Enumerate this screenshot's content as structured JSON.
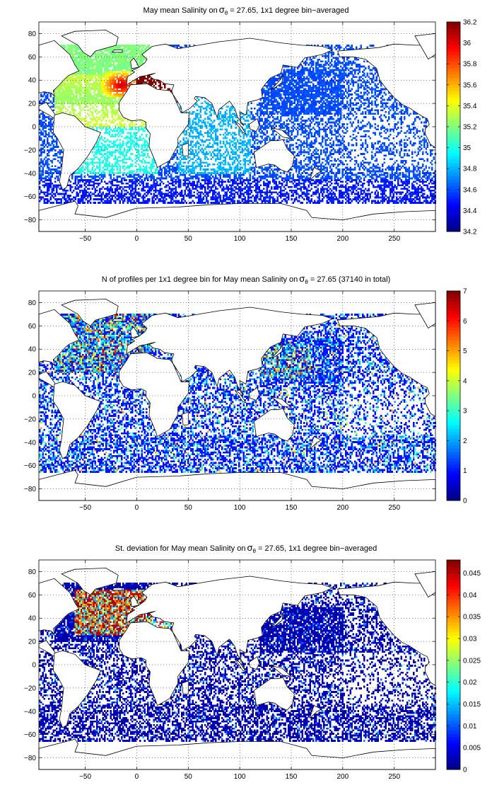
{
  "colors": {
    "land": "#ffffff",
    "coast": "#000000",
    "ocean_nodata": "#ffffff",
    "grid": "#000000"
  },
  "colormap": "jet",
  "chart_data": [
    {
      "type": "heatmap",
      "title_prefix": "May mean Salinity on",
      "title_symbol": "σ",
      "title_subscript": "θ",
      "title_suffix": " = 27.65, 1x1 degree bin−averaged",
      "xlim": [
        -95,
        290
      ],
      "ylim": [
        -90,
        90
      ],
      "x_ticks": [
        -50,
        0,
        50,
        100,
        150,
        200,
        250
      ],
      "x_tick_labels": [
        "−50",
        "0",
        "50",
        "100",
        "150",
        "200",
        "250"
      ],
      "y_ticks": [
        80,
        60,
        40,
        20,
        0,
        -20,
        -40,
        -60,
        -80
      ],
      "y_tick_labels": [
        "80",
        "60",
        "40",
        "20",
        "0",
        "−20",
        "−40",
        "−60",
        "−80"
      ],
      "grid": true,
      "colorbar": {
        "min": 34.2,
        "max": 36.2,
        "ticks": [
          36.2,
          36,
          35.8,
          35.6,
          35.4,
          35.2,
          35,
          34.8,
          34.6,
          34.4,
          34.2
        ],
        "tick_labels": [
          "36.2",
          "36",
          "35.8",
          "35.6",
          "35.4",
          "35.2",
          "35",
          "34.8",
          "34.6",
          "34.4",
          "34.2"
        ]
      },
      "field_summary": {
        "north_atlantic_subtropical_max": 36.1,
        "mediterranean_outflow": 36.2,
        "subpolar_north_atlantic": 35.2,
        "south_atlantic": 34.9,
        "pacific_indian_background": 34.6,
        "southern_ocean": 34.4
      }
    },
    {
      "type": "heatmap",
      "title_prefix": "N of profiles per 1x1 degree bin for May mean Salinity on",
      "title_symbol": "σ",
      "title_subscript": "θ",
      "title_suffix": " = 27.65 (37140 in total)",
      "total_profiles": 37140,
      "xlim": [
        -95,
        290
      ],
      "ylim": [
        -90,
        90
      ],
      "x_ticks": [
        -50,
        0,
        50,
        100,
        150,
        200,
        250
      ],
      "x_tick_labels": [
        "−50",
        "0",
        "50",
        "100",
        "150",
        "200",
        "250"
      ],
      "y_ticks": [
        80,
        60,
        40,
        20,
        0,
        -20,
        -40,
        -60,
        -80
      ],
      "y_tick_labels": [
        "80",
        "60",
        "40",
        "20",
        "0",
        "−20",
        "−40",
        "−60",
        "−80"
      ],
      "grid": true,
      "colorbar": {
        "min": 0,
        "max": 7,
        "ticks": [
          7,
          6,
          5,
          4,
          3,
          2,
          1,
          0
        ],
        "tick_labels": [
          "7",
          "6",
          "5",
          "4",
          "3",
          "2",
          "1",
          "0"
        ]
      },
      "field_summary": {
        "high_density_regions": [
          "North Atlantic",
          "Northwest Pacific (Kuroshio)"
        ],
        "max_bin_count": 7,
        "typical_bin_count": 1
      }
    },
    {
      "type": "heatmap",
      "title_prefix": "St. deviation for May mean Salinity on",
      "title_symbol": "σ",
      "title_subscript": "θ",
      "title_suffix": " = 27.65, 1x1 degree bin−averaged",
      "xlim": [
        -95,
        290
      ],
      "ylim": [
        -90,
        90
      ],
      "x_ticks": [
        -50,
        0,
        50,
        100,
        150,
        200,
        250
      ],
      "x_tick_labels": [
        "−50",
        "0",
        "50",
        "100",
        "150",
        "200",
        "250"
      ],
      "y_ticks": [
        80,
        60,
        40,
        20,
        0,
        -20,
        -40,
        -60,
        -80
      ],
      "y_tick_labels": [
        "80",
        "60",
        "40",
        "20",
        "0",
        "−20",
        "−40",
        "−60",
        "−80"
      ],
      "grid": true,
      "colorbar": {
        "min": 0,
        "max": 0.048,
        "ticks": [
          0.045,
          0.04,
          0.035,
          0.03,
          0.025,
          0.02,
          0.015,
          0.01,
          0.005,
          0
        ],
        "tick_labels": [
          "0.045",
          "0.04",
          "0.035",
          "0.03",
          "0.025",
          "0.02",
          "0.015",
          "0.01",
          "0.005",
          "0"
        ]
      },
      "field_summary": {
        "north_atlantic_max": 0.048,
        "background": 0.003
      }
    }
  ]
}
